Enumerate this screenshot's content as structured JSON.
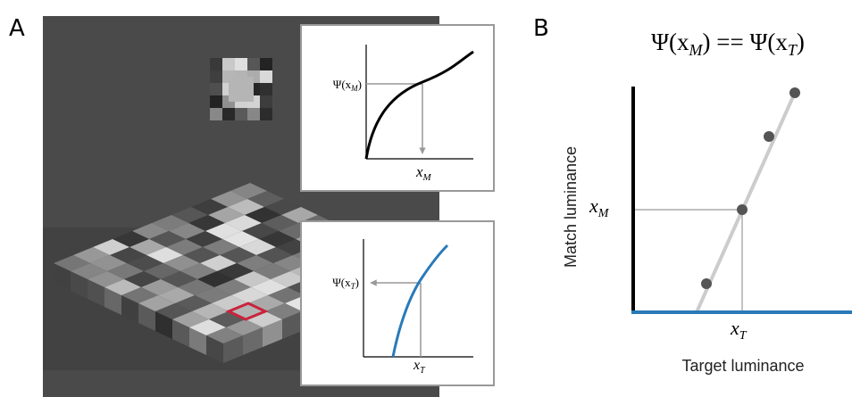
{
  "panels": {
    "a": "A",
    "b": "B"
  },
  "inset_top": {
    "y_label": {
      "pre": "Ψ(x",
      "sub": "M",
      "post": ")"
    },
    "x_label": {
      "base": "x",
      "sub": "M"
    }
  },
  "inset_bottom": {
    "y_label": {
      "pre": "Ψ(x",
      "sub": "T",
      "post": ")"
    },
    "x_label": {
      "base": "x",
      "sub": "T"
    }
  },
  "panel_b": {
    "title": {
      "pre": "Ψ(x",
      "sub1": "M",
      "mid": ") == Ψ(x",
      "sub2": "T",
      "post": ")"
    },
    "y_axis_label": "Match luminance",
    "x_axis_label": "Target luminance",
    "y_marker": {
      "base": "x",
      "sub": "M"
    },
    "x_marker": {
      "base": "x",
      "sub": "T"
    }
  }
}
